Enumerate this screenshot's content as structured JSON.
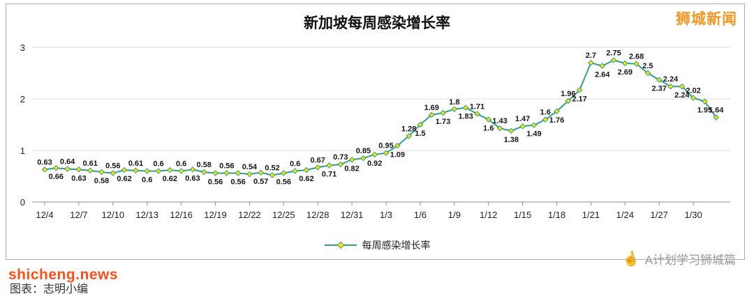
{
  "header": {
    "title": "新加坡每周感染增长率",
    "brand": "狮城新闻"
  },
  "legend": {
    "label": "每周感染增长率"
  },
  "watermarks": {
    "site": "shicheng.news",
    "credit": "图表：志明小编",
    "hand_icon": "☝",
    "account": "A计划学习狮城篇"
  },
  "colors": {
    "line": "#2fa08c",
    "marker_fill": "#ffe100",
    "marker_border": "#2fa08c",
    "gridline": "#dcdcdc",
    "axis": "#8c8c8c",
    "brand": "#f59a23",
    "site": "#ff4e16",
    "account": "#9a9a9a"
  },
  "chart_data": {
    "type": "line",
    "title": "新加坡每周感染增长率",
    "ylabel": "",
    "xlabel": "",
    "ylim": [
      0,
      3
    ],
    "yticks": [
      0,
      1,
      2,
      3
    ],
    "grid": true,
    "legend_position": "bottom-center",
    "x_tick_labels": [
      "12/4",
      "12/7",
      "12/10",
      "12/13",
      "12/16",
      "12/19",
      "12/22",
      "12/25",
      "12/28",
      "12/31",
      "1/3",
      "1/6",
      "1/9",
      "1/12",
      "1/15",
      "1/18",
      "1/21",
      "1/24",
      "1/27",
      "1/30"
    ],
    "tick_every": 3,
    "series": [
      {
        "name": "每周感染增长率",
        "values": [
          0.63,
          0.66,
          0.64,
          0.63,
          0.61,
          0.58,
          0.56,
          0.62,
          0.61,
          0.6,
          0.6,
          0.62,
          0.6,
          0.63,
          0.58,
          0.56,
          0.56,
          0.56,
          0.54,
          0.57,
          0.52,
          0.56,
          0.6,
          0.62,
          0.67,
          0.71,
          0.73,
          0.82,
          0.85,
          0.92,
          0.95,
          1.09,
          1.28,
          1.5,
          1.69,
          1.73,
          1.8,
          1.83,
          1.71,
          1.6,
          1.43,
          1.38,
          1.47,
          1.49,
          1.6,
          1.76,
          1.96,
          2.17,
          2.7,
          2.64,
          2.75,
          2.69,
          2.68,
          2.5,
          2.37,
          2.24,
          2.24,
          2.02,
          1.95,
          1.64
        ]
      }
    ],
    "label_sides": [
      "a",
      "b",
      "a",
      "b",
      "a",
      "b",
      "a",
      "b",
      "a",
      "b",
      "a",
      "b",
      "a",
      "b",
      "a",
      "b",
      "a",
      "b",
      "a",
      "b",
      "a",
      "b",
      "a",
      "b",
      "a",
      "b",
      "a",
      "b",
      "a",
      "b",
      "a",
      "b",
      "a",
      "b",
      "a",
      "b",
      "a",
      "b",
      "a",
      "b",
      "a",
      "b",
      "a",
      "b",
      "a",
      "b",
      "a",
      "b",
      "a",
      "b",
      "a",
      "b",
      "a",
      "a",
      "b",
      "a",
      "b",
      "a",
      "b",
      "a"
    ]
  }
}
